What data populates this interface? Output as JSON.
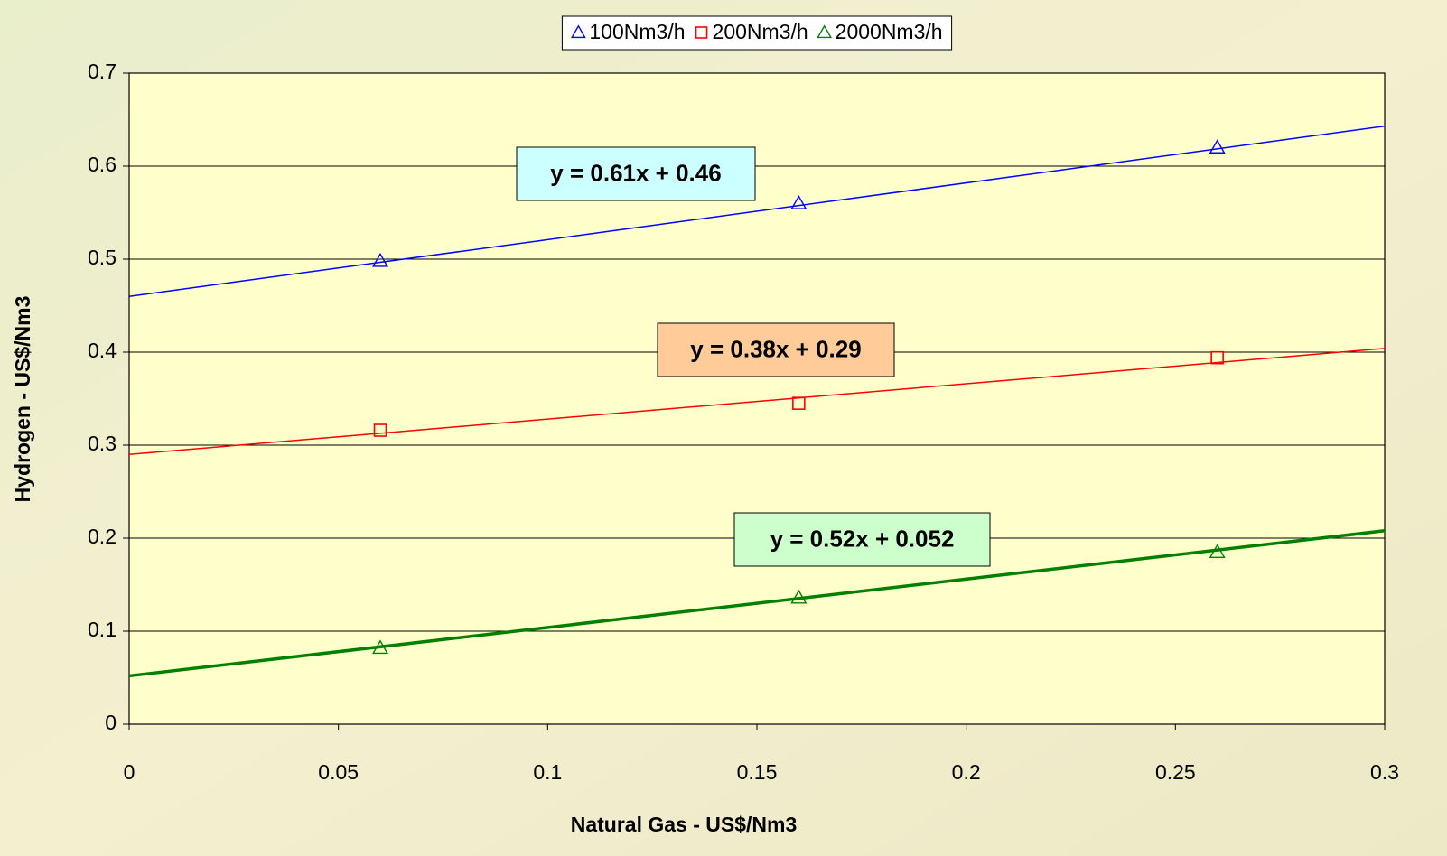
{
  "chart_data": {
    "type": "scatter",
    "x_label": "Natural Gas - US$/Nm3",
    "y_label": "Hydrogen - US$/Nm3",
    "x": [
      0.06,
      0.16,
      0.26
    ],
    "series": [
      {
        "name": "100Nm3/h",
        "color": "#0000ff",
        "marker": "triangle",
        "values": [
          0.498,
          0.56,
          0.62
        ],
        "trendline": {
          "slope": 0.61,
          "intercept": 0.46,
          "label": "y = 0.61x + 0.46",
          "box_color": "#ccffff",
          "width": 1.5
        }
      },
      {
        "name": "200Nm3/h",
        "color": "#ff0000",
        "marker": "square",
        "values": [
          0.316,
          0.345,
          0.394
        ],
        "trendline": {
          "slope": 0.38,
          "intercept": 0.29,
          "label": "y = 0.38x + 0.29",
          "box_color": "#ffcc99",
          "width": 1.5
        }
      },
      {
        "name": "2000Nm3/h",
        "color": "#008000",
        "marker": "triangle",
        "values": [
          0.082,
          0.136,
          0.185
        ],
        "trendline": {
          "slope": 0.52,
          "intercept": 0.052,
          "label": "y = 0.52x + 0.052",
          "box_color": "#ccffcc",
          "width": 3.5
        }
      }
    ],
    "xlim": [
      0,
      0.3
    ],
    "xticks": [
      0,
      0.05,
      0.1,
      0.15,
      0.2,
      0.25,
      0.3
    ],
    "ylim": [
      0,
      0.7
    ],
    "yticks": [
      0,
      0.1,
      0.2,
      0.3,
      0.4,
      0.5,
      0.6,
      0.7
    ],
    "grid": true,
    "legend": "top",
    "plot_color": "#ffffcc"
  }
}
